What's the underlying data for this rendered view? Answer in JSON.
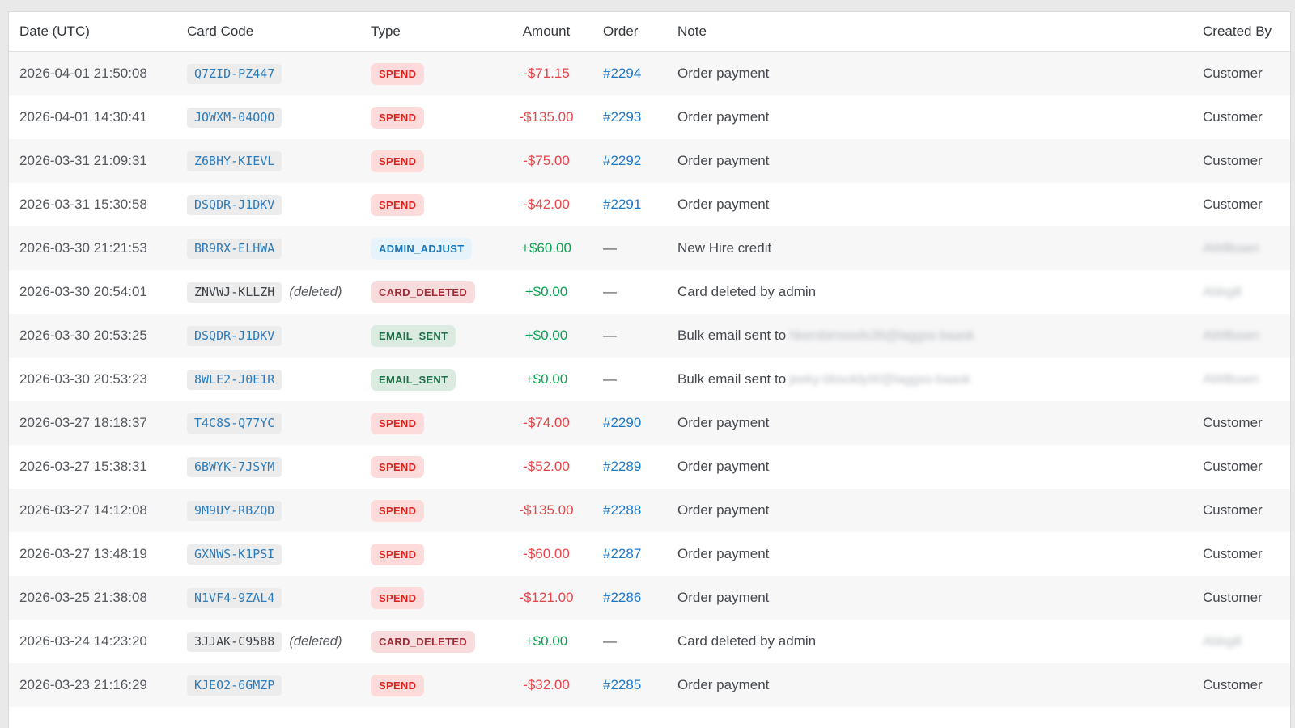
{
  "page": {
    "background": "#e9e9e9",
    "card_background": "#ffffff"
  },
  "colors": {
    "amount_negative": "#e5464a",
    "amount_positive": "#09a350",
    "order_link": "#1b79c9",
    "card_code_link": "#2b7cbd",
    "zebra_row": "#f7f7f8",
    "header_text": "#33373b"
  },
  "badges": {
    "SPEND": {
      "bg": "#fcdbda",
      "fg": "#d7261f"
    },
    "ADMIN_ADJUST": {
      "bg": "#e7f3fa",
      "fg": "#1878bf"
    },
    "CARD_DELETED": {
      "bg": "#f8dbdd",
      "fg": "#9c2b33"
    },
    "EMAIL_SENT": {
      "bg": "#dcebe1",
      "fg": "#1d6f47"
    }
  },
  "table": {
    "columns": [
      {
        "label": "Date (UTC)"
      },
      {
        "label": "Card Code"
      },
      {
        "label": "Type"
      },
      {
        "label": "Amount"
      },
      {
        "label": "Order"
      },
      {
        "label": "Note"
      },
      {
        "label": "Created By"
      }
    ],
    "deleted_label": "(deleted)",
    "em_dash": "—",
    "rows": [
      {
        "date": "2026-04-01 21:50:08",
        "code": "Q7ZID-PZ447",
        "code_deleted": false,
        "type": "SPEND",
        "amount": "-$71.15",
        "amount_positive": false,
        "order": "#2294",
        "note": "Order payment",
        "note_redacted": null,
        "created_by": "Customer",
        "created_by_redacted": null
      },
      {
        "date": "2026-04-01 14:30:41",
        "code": "JOWXM-04OQO",
        "code_deleted": false,
        "type": "SPEND",
        "amount": "-$135.00",
        "amount_positive": false,
        "order": "#2293",
        "note": "Order payment",
        "note_redacted": null,
        "created_by": "Customer",
        "created_by_redacted": null
      },
      {
        "date": "2026-03-31 21:09:31",
        "code": "Z6BHY-KIEVL",
        "code_deleted": false,
        "type": "SPEND",
        "amount": "-$75.00",
        "amount_positive": false,
        "order": "#2292",
        "note": "Order payment",
        "note_redacted": null,
        "created_by": "Customer",
        "created_by_redacted": null
      },
      {
        "date": "2026-03-31 15:30:58",
        "code": "DSQDR-J1DKV",
        "code_deleted": false,
        "type": "SPEND",
        "amount": "-$42.00",
        "amount_positive": false,
        "order": "#2291",
        "note": "Order payment",
        "note_redacted": null,
        "created_by": "Customer",
        "created_by_redacted": null
      },
      {
        "date": "2026-03-30 21:21:53",
        "code": "BR9RX-ELHWA",
        "code_deleted": false,
        "type": "ADMIN_ADJUST",
        "amount": "+$60.00",
        "amount_positive": true,
        "order": null,
        "note": "New Hire credit",
        "note_redacted": null,
        "created_by": null,
        "created_by_redacted": "AWillssen"
      },
      {
        "date": "2026-03-30 20:54:01",
        "code": "ZNVWJ-KLLZH",
        "code_deleted": true,
        "type": "CARD_DELETED",
        "amount": "+$0.00",
        "amount_positive": true,
        "order": null,
        "note": "Card deleted by admin",
        "note_redacted": null,
        "created_by": null,
        "created_by_redacted": "Abbgill"
      },
      {
        "date": "2026-03-30 20:53:25",
        "code": "DSQDR-J1DKV",
        "code_deleted": false,
        "type": "EMAIL_SENT",
        "amount": "+$0.00",
        "amount_positive": true,
        "order": null,
        "note": "Bulk email sent to",
        "note_redacted": "hkersbimoods38@laggss-baask",
        "created_by": null,
        "created_by_redacted": "AWillssen"
      },
      {
        "date": "2026-03-30 20:53:23",
        "code": "8WLE2-J0E1R",
        "code_deleted": false,
        "type": "EMAIL_SENT",
        "amount": "+$0.00",
        "amount_positive": true,
        "order": null,
        "note": "Bulk email sent to",
        "note_redacted": "jeeky-bbsoldyW@laggss-baask",
        "created_by": null,
        "created_by_redacted": "AWillssen"
      },
      {
        "date": "2026-03-27 18:18:37",
        "code": "T4C8S-Q77YC",
        "code_deleted": false,
        "type": "SPEND",
        "amount": "-$74.00",
        "amount_positive": false,
        "order": "#2290",
        "note": "Order payment",
        "note_redacted": null,
        "created_by": "Customer",
        "created_by_redacted": null
      },
      {
        "date": "2026-03-27 15:38:31",
        "code": "6BWYK-7JSYM",
        "code_deleted": false,
        "type": "SPEND",
        "amount": "-$52.00",
        "amount_positive": false,
        "order": "#2289",
        "note": "Order payment",
        "note_redacted": null,
        "created_by": "Customer",
        "created_by_redacted": null
      },
      {
        "date": "2026-03-27 14:12:08",
        "code": "9M9UY-RBZQD",
        "code_deleted": false,
        "type": "SPEND",
        "amount": "-$135.00",
        "amount_positive": false,
        "order": "#2288",
        "note": "Order payment",
        "note_redacted": null,
        "created_by": "Customer",
        "created_by_redacted": null
      },
      {
        "date": "2026-03-27 13:48:19",
        "code": "GXNWS-K1PSI",
        "code_deleted": false,
        "type": "SPEND",
        "amount": "-$60.00",
        "amount_positive": false,
        "order": "#2287",
        "note": "Order payment",
        "note_redacted": null,
        "created_by": "Customer",
        "created_by_redacted": null
      },
      {
        "date": "2026-03-25 21:38:08",
        "code": "N1VF4-9ZAL4",
        "code_deleted": false,
        "type": "SPEND",
        "amount": "-$121.00",
        "amount_positive": false,
        "order": "#2286",
        "note": "Order payment",
        "note_redacted": null,
        "created_by": "Customer",
        "created_by_redacted": null
      },
      {
        "date": "2026-03-24 14:23:20",
        "code": "3JJAK-C9588",
        "code_deleted": true,
        "type": "CARD_DELETED",
        "amount": "+$0.00",
        "amount_positive": true,
        "order": null,
        "note": "Card deleted by admin",
        "note_redacted": null,
        "created_by": null,
        "created_by_redacted": "Abbgill"
      },
      {
        "date": "2026-03-23 21:16:29",
        "code": "KJEO2-6GMZP",
        "code_deleted": false,
        "type": "SPEND",
        "amount": "-$32.00",
        "amount_positive": false,
        "order": "#2285",
        "note": "Order payment",
        "note_redacted": null,
        "created_by": "Customer",
        "created_by_redacted": null
      }
    ]
  }
}
